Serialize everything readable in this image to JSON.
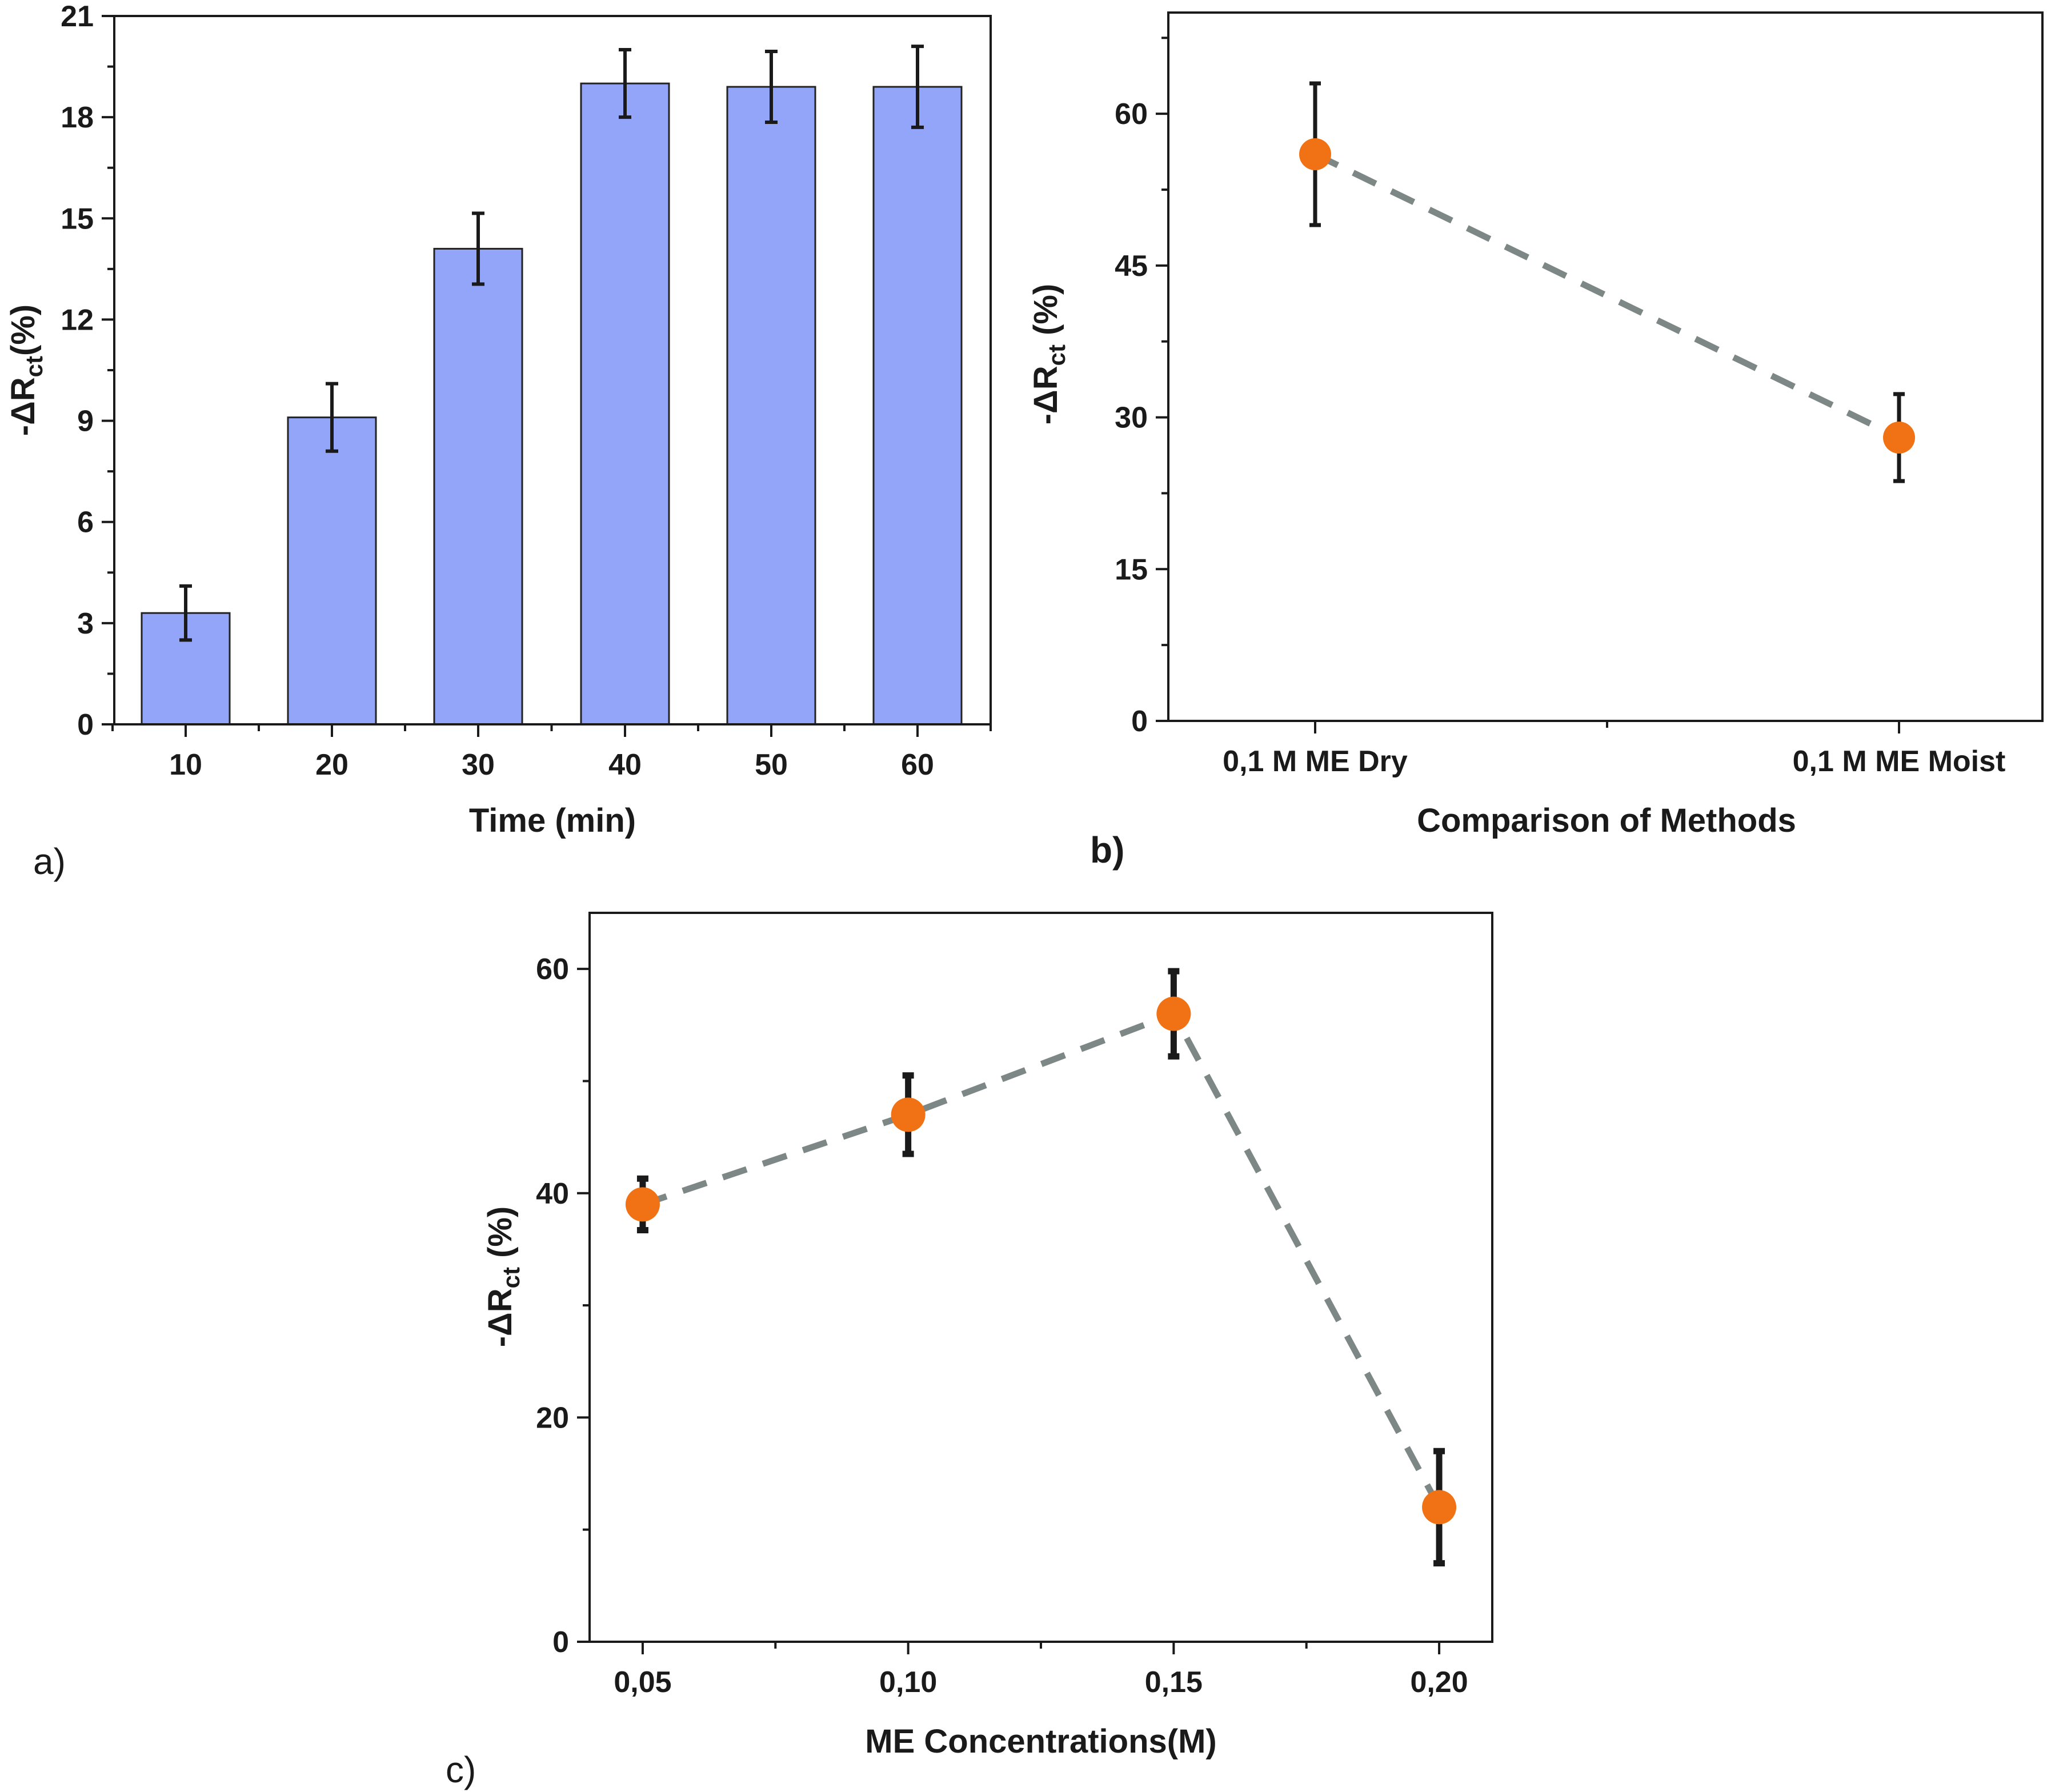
{
  "colors": {
    "bar_fill": "#93a5f8",
    "bar_stroke": "#222222",
    "marker": "#f07214",
    "dash_line": "#7d8785",
    "error_bar": "#1a1a1a",
    "axis": "#1a1a1a"
  },
  "chart_data": [
    {
      "id": "a",
      "type": "bar",
      "panel_label": "a)",
      "title": "",
      "xlabel": "Time (min)",
      "ylabel_prefix": "-ΔR",
      "ylabel_sub": "ct",
      "ylabel_suffix": "(%)",
      "categories": [
        "10",
        "20",
        "30",
        "40",
        "50",
        "60"
      ],
      "values": [
        3.3,
        9.1,
        14.1,
        19.0,
        18.9,
        18.9
      ],
      "errors": [
        0.8,
        1.0,
        1.05,
        1.0,
        1.05,
        1.2
      ],
      "ylim": [
        0,
        21
      ],
      "yticks": [
        "0",
        "3",
        "6",
        "9",
        "12",
        "15",
        "18",
        "21"
      ],
      "grid": false
    },
    {
      "id": "b",
      "type": "scatter",
      "panel_label": "b)",
      "title": "",
      "xlabel": "Comparison of Methods",
      "ylabel_prefix": "-ΔR",
      "ylabel_sub": "ct",
      "ylabel_suffix": " (%)",
      "categories": [
        "0,1 M ME Dry",
        "0,1 M ME Moist"
      ],
      "values": [
        56,
        28
      ],
      "errors": [
        7,
        4.3
      ],
      "ylim": [
        0,
        70
      ],
      "yticks": [
        "0",
        "15",
        "30",
        "45",
        "60"
      ],
      "line_style": "dashed",
      "grid": false
    },
    {
      "id": "c",
      "type": "scatter",
      "panel_label": "c)",
      "title": "",
      "xlabel": "ME Concentrations(M)",
      "ylabel_prefix": "-ΔR",
      "ylabel_sub": "ct",
      "ylabel_suffix": " (%)",
      "x": [
        0.05,
        0.1,
        0.15,
        0.2
      ],
      "xticks": [
        "0,05",
        "0,10",
        "0,15",
        "0,20"
      ],
      "values": [
        39,
        47,
        56,
        12
      ],
      "errors": [
        2.3,
        3.5,
        3.8,
        5
      ],
      "xlim": [
        0.04,
        0.21
      ],
      "ylim": [
        0,
        65
      ],
      "yticks": [
        "0",
        "20",
        "40",
        "60"
      ],
      "line_style": "dashed",
      "grid": false
    }
  ]
}
